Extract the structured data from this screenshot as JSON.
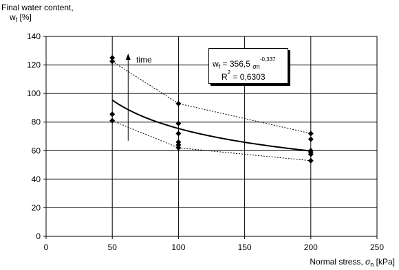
{
  "y_axis_label_line1": "Final water content,",
  "y_axis_label_line2_sym": "w",
  "y_axis_label_line2_sub": "f",
  "y_axis_label_line2_unit": " [%]",
  "x_axis_label_text": "Normal stress, ",
  "x_axis_label_sym": "σ",
  "x_axis_label_sub": "n",
  "x_axis_label_unit": " [kPa]",
  "equation": {
    "lhs_sym": "w",
    "lhs_sub": "f",
    "rhs_coef": " = 356,5 ",
    "rhs_base": "σ",
    "rhs_base_sub": "n",
    "rhs_exp": "-0,337",
    "r2_lead": "R",
    "r2_exp": "2",
    "r2_value": " = 0,6303"
  },
  "time_label": "time",
  "colors": {
    "line": "#000000",
    "grid": "#000000",
    "background": "#ffffff"
  },
  "chart_data": {
    "type": "scatter",
    "xlim": [
      0,
      250
    ],
    "ylim": [
      0,
      140
    ],
    "xticks": [
      0,
      50,
      100,
      150,
      200,
      250
    ],
    "yticks": [
      0,
      20,
      40,
      60,
      80,
      100,
      120,
      140
    ],
    "grid": true,
    "series": [
      {
        "x": [
          50,
          50,
          50,
          50,
          100,
          100,
          100,
          100,
          100,
          100,
          200,
          200,
          200,
          200,
          200,
          200
        ],
        "y": [
          125,
          122.5,
          85.5,
          81,
          93,
          79,
          72,
          66,
          64,
          62,
          72,
          68,
          60,
          59,
          57.5,
          53
        ]
      }
    ],
    "fit": {
      "kind": "power",
      "a": 356.5,
      "b": -0.337,
      "x_range": [
        50,
        200
      ]
    },
    "envelope_upper": {
      "x": [
        50,
        100,
        200
      ],
      "y": [
        122.5,
        93,
        72
      ]
    },
    "envelope_lower": {
      "x": [
        50,
        100,
        200
      ],
      "y": [
        81,
        62,
        53
      ]
    },
    "annotation_arrow": {
      "x": 62,
      "y_from": 67,
      "y_to": 128
    }
  }
}
